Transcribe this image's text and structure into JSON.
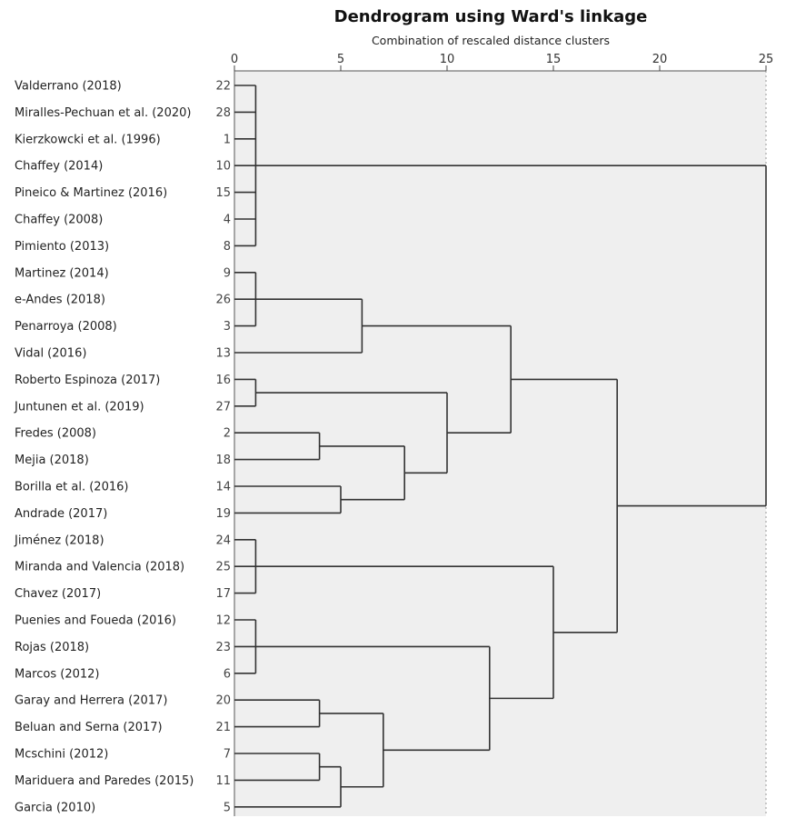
{
  "chart_data": {
    "type": "dendrogram",
    "title": "Dendrogram using Ward's linkage",
    "subtitle": "Combination of rescaled distance clusters",
    "x_ticks": [
      0,
      5,
      10,
      15,
      20,
      25
    ],
    "xlim": [
      0,
      25
    ],
    "leaves": [
      {
        "label": "Valderrano (2018)",
        "case": "22"
      },
      {
        "label": "Miralles-Pechuan et al. (2020)",
        "case": "28"
      },
      {
        "label": "Kierzkowcki et al. (1996)",
        "case": "1"
      },
      {
        "label": "Chaffey (2014)",
        "case": "10"
      },
      {
        "label": "Pineico & Martinez (2016)",
        "case": "15"
      },
      {
        "label": "Chaffey (2008)",
        "case": "4"
      },
      {
        "label": "Pimiento (2013)",
        "case": "8"
      },
      {
        "label": "Martinez (2014)",
        "case": "9"
      },
      {
        "label": "e-Andes (2018)",
        "case": "26"
      },
      {
        "label": "Penarroya (2008)",
        "case": "3"
      },
      {
        "label": "Vidal (2016)",
        "case": "13"
      },
      {
        "label": "Roberto Espinoza (2017)",
        "case": "16"
      },
      {
        "label": "Juntunen et al. (2019)",
        "case": "27"
      },
      {
        "label": "Fredes (2008)",
        "case": "2"
      },
      {
        "label": "Mejia (2018)",
        "case": "18"
      },
      {
        "label": "Borilla et al. (2016)",
        "case": "14"
      },
      {
        "label": "Andrade (2017)",
        "case": "19"
      },
      {
        "label": "Jiménez (2018)",
        "case": "24"
      },
      {
        "label": "Miranda and Valencia (2018)",
        "case": "25"
      },
      {
        "label": "Chavez (2017)",
        "case": "17"
      },
      {
        "label": "Puenies and Foueda (2016)",
        "case": "12"
      },
      {
        "label": "Rojas (2018)",
        "case": "23"
      },
      {
        "label": "Marcos (2012)",
        "case": "6"
      },
      {
        "label": "Garay and Herrera (2017)",
        "case": "20"
      },
      {
        "label": "Beluan and Serna (2017)",
        "case": "21"
      },
      {
        "label": "Mcschini (2012)",
        "case": "7"
      },
      {
        "label": "Mariduera and Paredes (2015)",
        "case": "11"
      },
      {
        "label": "Garcia (2010)",
        "case": "5"
      }
    ],
    "merges": [
      {
        "id": "A",
        "children": [
          0,
          1,
          2,
          3,
          4,
          5,
          6
        ],
        "height": 1
      },
      {
        "id": "B",
        "children": [
          7,
          8,
          9
        ],
        "height": 1
      },
      {
        "id": "C",
        "children": [
          "B",
          10
        ],
        "height": 6
      },
      {
        "id": "D",
        "children": [
          11,
          12
        ],
        "height": 1
      },
      {
        "id": "E",
        "children": [
          13,
          14
        ],
        "height": 4
      },
      {
        "id": "F",
        "children": [
          15,
          16
        ],
        "height": 5
      },
      {
        "id": "G",
        "children": [
          "E",
          "F"
        ],
        "height": 8
      },
      {
        "id": "H",
        "children": [
          "D",
          "G"
        ],
        "height": 10
      },
      {
        "id": "I",
        "children": [
          "C",
          "H"
        ],
        "height": 13
      },
      {
        "id": "J",
        "children": [
          17,
          18,
          19
        ],
        "height": 1
      },
      {
        "id": "K",
        "children": [
          20,
          21,
          22
        ],
        "height": 1
      },
      {
        "id": "L",
        "children": [
          23,
          24
        ],
        "height": 4
      },
      {
        "id": "M",
        "children": [
          25,
          26
        ],
        "height": 4
      },
      {
        "id": "N",
        "children": [
          "M",
          27
        ],
        "height": 5
      },
      {
        "id": "O",
        "children": [
          "L",
          "N"
        ],
        "height": 7
      },
      {
        "id": "P",
        "children": [
          "K",
          "O"
        ],
        "height": 12
      },
      {
        "id": "Q",
        "children": [
          "J",
          "P"
        ],
        "height": 15
      },
      {
        "id": "R",
        "children": [
          "I",
          "Q"
        ],
        "height": 18
      },
      {
        "id": "S",
        "children": [
          "A",
          "R"
        ],
        "height": 25
      }
    ]
  }
}
